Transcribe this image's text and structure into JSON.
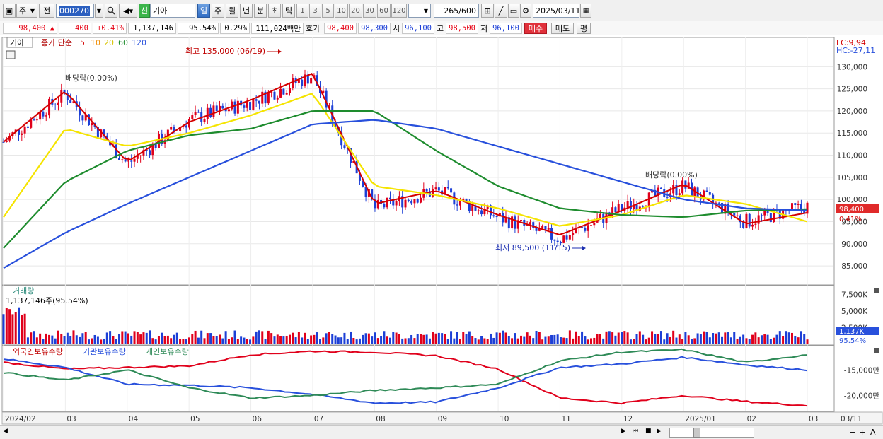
{
  "toolbar": {
    "market": "주",
    "prefix": "전",
    "code": "000270",
    "new_badge": "신",
    "name": "기아",
    "periods": [
      "일",
      "주",
      "월",
      "년",
      "분",
      "초",
      "틱"
    ],
    "active_period": "일",
    "numbers": [
      "1",
      "3",
      "5",
      "10",
      "20",
      "30",
      "60",
      "120"
    ],
    "count": "265",
    "count_total": "/600",
    "date": "2025/03/11"
  },
  "quote": {
    "price": "98,400",
    "change": "400",
    "change_arrow": "▲",
    "change_pct": "+0.41%",
    "volume": "1,137,146",
    "vol_ratio": "95.54%",
    "turnover": "0.29%",
    "amount": "111,024백만",
    "bid_label": "호가",
    "ask": "98,400",
    "bid": "98,300",
    "open_label": "시",
    "open": "96,100",
    "high_label": "고",
    "high": "98,500",
    "low_label": "저",
    "low": "96,100",
    "buy_btn": "매수",
    "sell_btn": "매도",
    "eval_btn": "평"
  },
  "price_panel": {
    "legend_name": "기아",
    "legend_main": "종가 단순",
    "ma": [
      "5",
      "10",
      "20",
      "60",
      "120"
    ],
    "ma_colors": [
      "#d40000",
      "#f08c00",
      "#f5e400",
      "#1e8c2e",
      "#2850dc"
    ],
    "lc": "LC:9,94",
    "hc": "HC:-27,11",
    "annotations": {
      "high": "최고 135,000 (06/19)",
      "low": "최저 89,500 (11/15)",
      "div1": "배당락(0.00%)",
      "div2": "배당락(0.00%)"
    },
    "last_price": "98,400",
    "last_pct": "0.41%"
  },
  "volume_panel": {
    "title": "거래량",
    "readout": "1,137,146주(95.54%)",
    "last_volume": "1,137K",
    "last_pct": "95.54%"
  },
  "holding_panel": {
    "legend": [
      "외국인보유수량",
      "기관보유수량",
      "개인보유수량"
    ],
    "colors": [
      "#e0001b",
      "#2850dc",
      "#2e8a57"
    ]
  },
  "xaxis_labels": [
    "2024/02",
    "03",
    "04",
    "05",
    "06",
    "07",
    "08",
    "09",
    "10",
    "11",
    "12",
    "2025/01",
    "02",
    "03",
    "03/11"
  ],
  "chart_data": [
    {
      "type": "candlestick",
      "title": "",
      "y_ticks": [
        "130,000",
        "125,000",
        "120,000",
        "115,000",
        "110,000",
        "105,000",
        "100,000",
        "95,000",
        "90,000",
        "85,000"
      ],
      "ylim": [
        80700,
        136600
      ],
      "x": [
        "2024/02",
        "03",
        "04",
        "05",
        "06",
        "07",
        "08",
        "09",
        "10",
        "11",
        "12",
        "2025/01",
        "02",
        "03"
      ],
      "close": [
        113000,
        124000,
        108000,
        118000,
        122000,
        128000,
        98000,
        102000,
        96000,
        91000,
        98000,
        103000,
        95000,
        98400
      ],
      "moving_averages": {
        "MA5": [
          113000,
          124500,
          108500,
          117500,
          122500,
          128500,
          99000,
          102000,
          96500,
          92000,
          97500,
          103500,
          94500,
          97000
        ],
        "MA20": [
          96000,
          116000,
          112000,
          115000,
          119000,
          124000,
          103000,
          101000,
          98000,
          94000,
          96500,
          101000,
          99000,
          95000
        ],
        "MA60": [
          89000,
          104000,
          111000,
          114500,
          116000,
          120000,
          120000,
          111000,
          103000,
          98000,
          96500,
          96000,
          97500,
          97800
        ],
        "MA120": [
          84500,
          92500,
          99000,
          105000,
          111000,
          117000,
          118000,
          116000,
          112000,
          108000,
          104000,
          100000,
          98000,
          97500
        ]
      },
      "annotations": [
        "최고 135,000 (06/19)",
        "최저 89,500 (11/15)",
        "배당락(0.00%)"
      ]
    },
    {
      "type": "bar",
      "title": "거래량",
      "y_ticks": [
        "7,500K",
        "5,000K",
        "2,500K"
      ],
      "ylim": [
        0,
        8500000
      ],
      "last_value": 1137146
    },
    {
      "type": "line",
      "series": [
        {
          "name": "외국인보유수량",
          "values": [
            -13500,
            -14800,
            -14500,
            -14200,
            -12000,
            -11300,
            -11500,
            -12200,
            -14800,
            -20500,
            -21500,
            -20000,
            -21200,
            -22000
          ]
        },
        {
          "name": "기관보유수량",
          "values": [
            -12800,
            -14500,
            -17800,
            -18000,
            -18500,
            -19800,
            -21500,
            -21300,
            -18500,
            -14500,
            -13800,
            -12500,
            -14000,
            -15000
          ]
        },
        {
          "name": "개인보유수량",
          "values": [
            -15500,
            -17000,
            -15000,
            -18500,
            -20500,
            -20000,
            -19000,
            -18500,
            -17800,
            -13200,
            -11500,
            -11000,
            -13500,
            -12000
          ]
        }
      ],
      "y_ticks": [
        "-15,000만",
        "-20,000만"
      ]
    }
  ]
}
